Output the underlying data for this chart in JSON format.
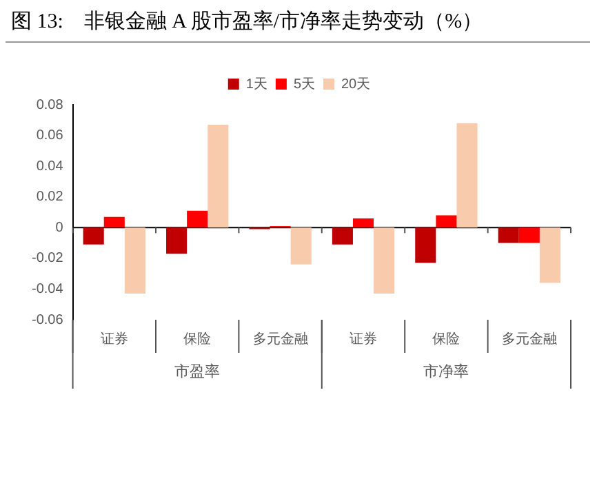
{
  "chart_data": {
    "type": "bar",
    "title": "图 13:    非银金融 A 股市盈率/市净率走势变动（%）",
    "categories": [
      "证券",
      "保险",
      "多元金融",
      "证券",
      "保险",
      "多元金融"
    ],
    "series": [
      {
        "name": "1天",
        "color": "#c00000",
        "values": [
          -0.011,
          -0.017,
          -0.001,
          -0.011,
          -0.023,
          -0.01
        ]
      },
      {
        "name": "5天",
        "color": "#ff0000",
        "values": [
          0.007,
          0.011,
          0.001,
          0.006,
          0.008,
          -0.01
        ]
      },
      {
        "name": "20天",
        "color": "#f8cbad",
        "values": [
          -0.043,
          0.067,
          -0.024,
          -0.043,
          0.068,
          -0.036
        ]
      }
    ],
    "ylim": [
      -0.06,
      0.08
    ],
    "yticks": [
      -0.06,
      -0.04,
      -0.02,
      0,
      0.02,
      0.04,
      0.06,
      0.08
    ],
    "legend": "top",
    "annotations": [
      "市盈率",
      "市净率"
    ]
  }
}
